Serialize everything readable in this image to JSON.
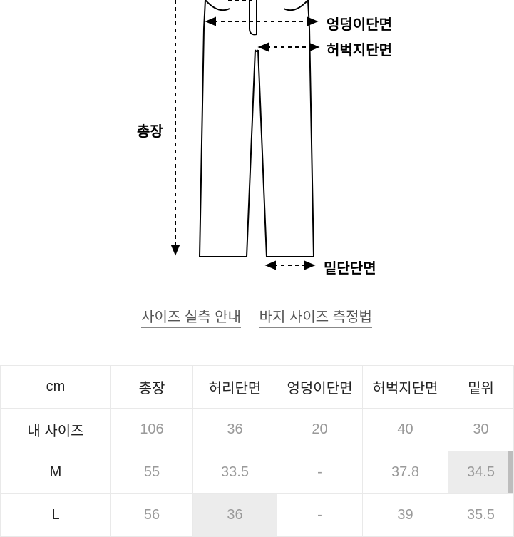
{
  "diagram": {
    "labels": {
      "hip": "엉덩이단면",
      "thigh": "허벅지단면",
      "length": "총장",
      "hem": "밑단단면"
    },
    "stroke": "#000000",
    "stroke_width": 2,
    "dash": "4 4"
  },
  "links": {
    "guide": "사이즈 실측 안내",
    "how": "바지 사이즈 측정법"
  },
  "table": {
    "unit_header": "cm",
    "columns": [
      "총장",
      "허리단면",
      "엉덩이단면",
      "허벅지단면",
      "밑위"
    ],
    "rows": [
      {
        "label": "내 사이즈",
        "values": [
          "106",
          "36",
          "20",
          "40",
          "30"
        ],
        "highlight": []
      },
      {
        "label": "M",
        "values": [
          "55",
          "33.5",
          "-",
          "37.8",
          "34.5"
        ],
        "highlight": [
          4
        ]
      },
      {
        "label": "L",
        "values": [
          "56",
          "36",
          "-",
          "39",
          "35.5"
        ],
        "highlight": [
          1
        ]
      }
    ],
    "border_color": "#e9e9e9",
    "value_color": "#9a9a9a",
    "highlight_bg": "#ececec"
  }
}
